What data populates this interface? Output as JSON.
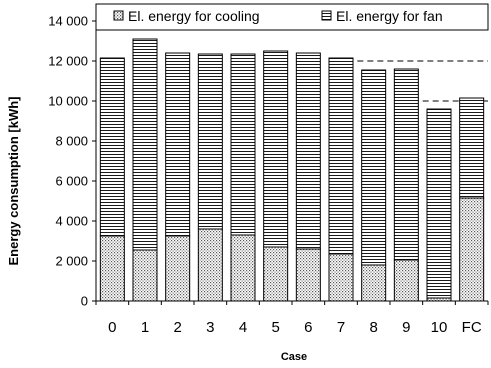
{
  "chart_data": {
    "type": "bar",
    "stacked": true,
    "title": "",
    "xlabel": "Case",
    "ylabel": "Energy consumption [kWh]",
    "ylim": [
      0,
      14000
    ],
    "yticks": [
      0,
      2000,
      4000,
      6000,
      8000,
      10000,
      12000,
      14000
    ],
    "ytick_labels": [
      "0",
      "2 000",
      "4 000",
      "6 000",
      "8 000",
      "10 000",
      "12 000",
      "14 000"
    ],
    "grid": false,
    "legend_position": "top",
    "categories": [
      "0",
      "1",
      "2",
      "3",
      "4",
      "5",
      "6",
      "7",
      "8",
      "9",
      "10",
      "FC"
    ],
    "series": [
      {
        "name": "El. energy for cooling",
        "pattern": "dotted",
        "values": [
          3250,
          2550,
          3250,
          3600,
          3300,
          2700,
          2600,
          2350,
          1800,
          2050,
          150,
          5150
        ]
      },
      {
        "name": "El. energy for fan",
        "pattern": "horizontal-lines",
        "values": [
          8900,
          10550,
          9150,
          8750,
          9050,
          9800,
          9800,
          9800,
          9750,
          9550,
          9450,
          5000
        ]
      }
    ],
    "reference_lines": [
      12000,
      10000
    ],
    "colors": {
      "stroke": "#000000",
      "background": "#ffffff"
    }
  }
}
